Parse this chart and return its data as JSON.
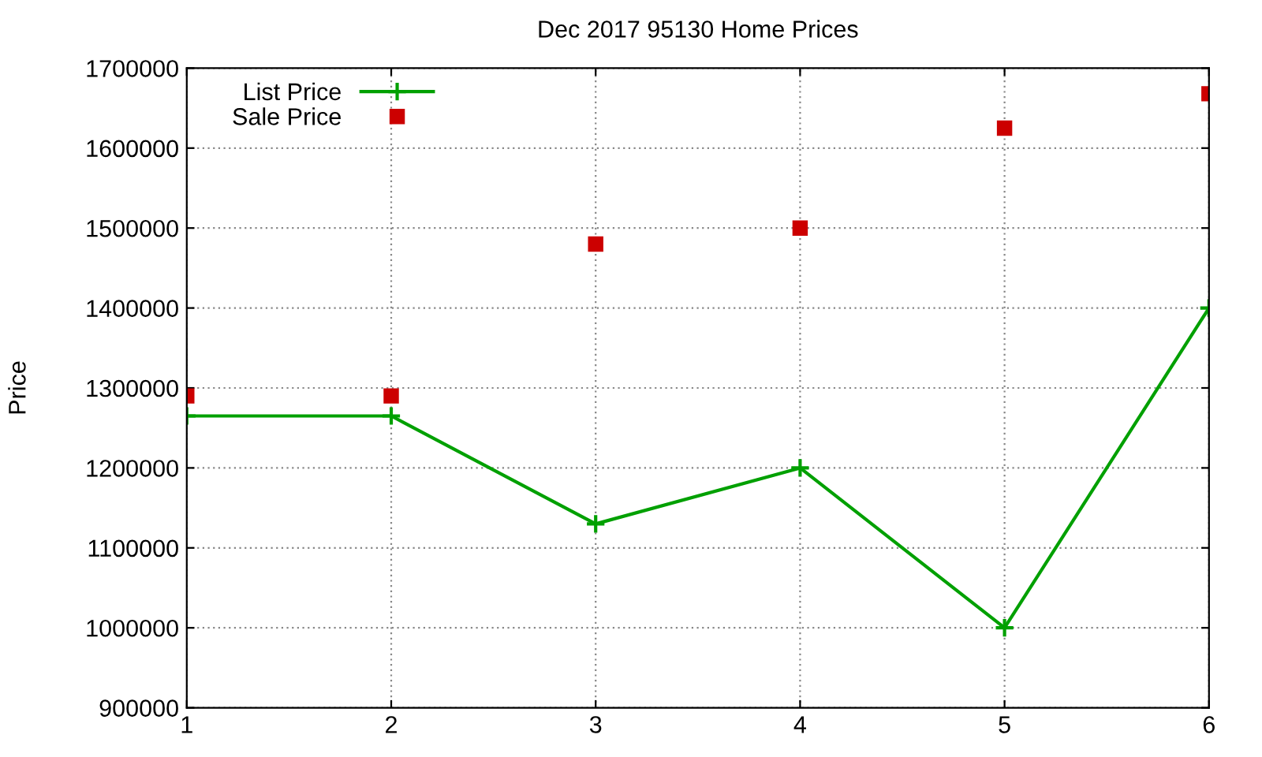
{
  "chart_data": {
    "type": "line",
    "title": "Dec 2017 95130 Home Prices",
    "ylabel": "Price",
    "x": [
      1,
      2,
      3,
      4,
      5,
      6
    ],
    "xlim": [
      1,
      6
    ],
    "xticks": [
      1,
      2,
      3,
      4,
      5,
      6
    ],
    "ylim": [
      900000,
      1700000
    ],
    "yticks": [
      900000,
      1000000,
      1100000,
      1200000,
      1300000,
      1400000,
      1500000,
      1600000,
      1700000
    ],
    "series": [
      {
        "name": "List Price",
        "color": "#00a000",
        "marker": "cross",
        "line_style": "solid",
        "values": [
          1265000,
          1265000,
          1130000,
          1200000,
          1000000,
          1400000
        ]
      },
      {
        "name": "Sale Price",
        "type": "scatter",
        "color": "#cc0000",
        "marker": "square",
        "values": [
          1290000,
          1290000,
          1480000,
          1500000,
          1625000,
          1668000
        ]
      }
    ],
    "grid": true,
    "legend": "top left"
  }
}
